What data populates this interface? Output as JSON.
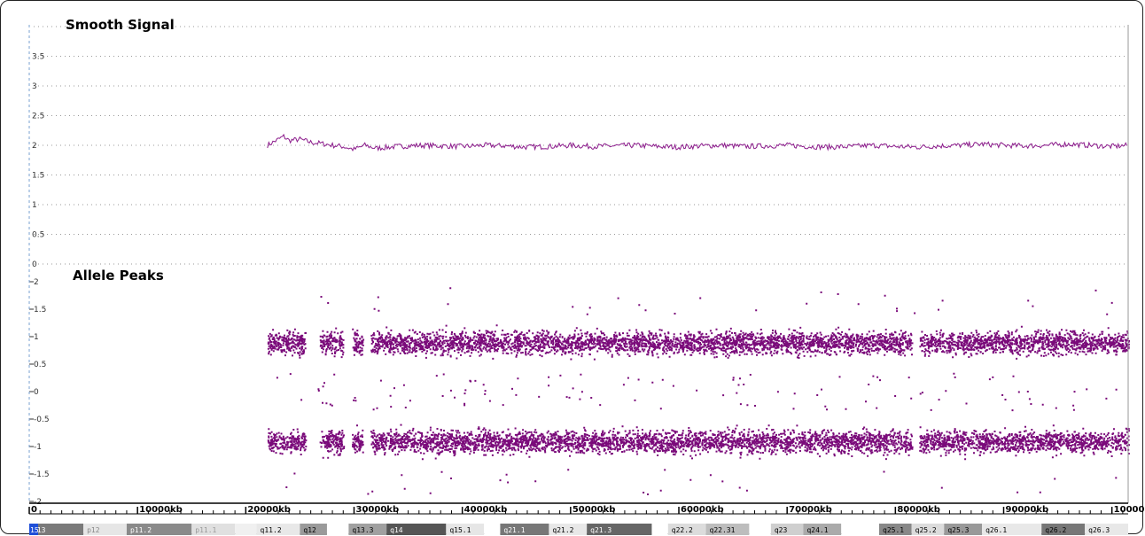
{
  "chart_data": [
    {
      "type": "line",
      "title": "Smooth Signal",
      "ylim": [
        0,
        4
      ],
      "y_ticks": [
        "0",
        "0.5",
        "1",
        "1.5",
        "2",
        "2.5",
        "3",
        "3.5"
      ],
      "grid": true,
      "color": "#8b1a8b",
      "series": [
        {
          "x_start_kb": 22000,
          "x_end_kb": 101500,
          "level": 2.0,
          "points": [
            [
              22000,
              2.0
            ],
            [
              22500,
              2.05
            ],
            [
              23000,
              2.1
            ],
            [
              23500,
              2.15
            ],
            [
              24000,
              2.08
            ],
            [
              25000,
              2.1
            ],
            [
              26000,
              2.05
            ],
            [
              27000,
              2.03
            ],
            [
              28000,
              2.0
            ],
            [
              29000,
              1.98
            ],
            [
              30000,
              1.93
            ],
            [
              31000,
              2.0
            ],
            [
              32000,
              1.95
            ],
            [
              34000,
              1.98
            ],
            [
              36000,
              2.0
            ],
            [
              38000,
              1.99
            ],
            [
              40000,
              1.98
            ],
            [
              42000,
              2.0
            ],
            [
              44000,
              1.99
            ],
            [
              46000,
              1.97
            ],
            [
              48000,
              1.98
            ],
            [
              50000,
              2.0
            ],
            [
              52000,
              1.98
            ],
            [
              54000,
              1.99
            ],
            [
              56000,
              2.0
            ],
            [
              58000,
              1.98
            ],
            [
              60000,
              1.97
            ],
            [
              62000,
              1.99
            ],
            [
              64000,
              2.0
            ],
            [
              66000,
              1.98
            ],
            [
              68000,
              1.99
            ],
            [
              70000,
              2.0
            ],
            [
              72000,
              1.98
            ],
            [
              74000,
              1.97
            ],
            [
              76000,
              1.98
            ],
            [
              78000,
              2.0
            ],
            [
              80000,
              1.98
            ],
            [
              82000,
              1.97
            ],
            [
              84000,
              1.99
            ],
            [
              86000,
              2.0
            ],
            [
              88000,
              2.02
            ],
            [
              90000,
              2.0
            ],
            [
              92000,
              1.99
            ],
            [
              94000,
              2.0
            ],
            [
              96000,
              2.02
            ],
            [
              98000,
              2.0
            ],
            [
              100000,
              1.98
            ],
            [
              101500,
              2.0
            ]
          ]
        }
      ]
    },
    {
      "type": "scatter",
      "title": "Allele Peaks",
      "ylim": [
        -2,
        2
      ],
      "y_ticks": [
        "-2",
        "-1.5",
        "-1",
        "-0.5",
        "0",
        "0.5",
        "1",
        "1.5",
        "2"
      ],
      "grid": false,
      "color": "#7a0a7a",
      "clusters": [
        {
          "y_center": 0.9,
          "spread": 0.2
        },
        {
          "y_center": -0.9,
          "spread": 0.2
        }
      ],
      "x_start_kb": 22000,
      "x_end_kb": 101500,
      "gaps_kb": [
        [
          25500,
          26800
        ],
        [
          29000,
          29800
        ],
        [
          30800,
          31500
        ],
        [
          81500,
          82200
        ]
      ]
    }
  ],
  "x_axis": {
    "range_kb": [
      0,
      101500
    ],
    "ticks": [
      {
        "value": 0,
        "label": "0"
      },
      {
        "value": 10000,
        "label": "10000kb"
      },
      {
        "value": 20000,
        "label": "20000kb"
      },
      {
        "value": 30000,
        "label": "30000kb"
      },
      {
        "value": 40000,
        "label": "40000kb"
      },
      {
        "value": 50000,
        "label": "50000kb"
      },
      {
        "value": 60000,
        "label": "60000kb"
      },
      {
        "value": 70000,
        "label": "70000kb"
      },
      {
        "value": 80000,
        "label": "80000kb"
      },
      {
        "value": 90000,
        "label": "90000kb"
      },
      {
        "value": 100000,
        "label": "100000"
      }
    ]
  },
  "ideogram": {
    "chromosome": "15",
    "bands": [
      {
        "label": "p13",
        "start": 0,
        "end": 5000,
        "color": "#7a7a7a",
        "text_color": "#ffffff"
      },
      {
        "label": "p12",
        "start": 5000,
        "end": 9000,
        "color": "#e6e6e6",
        "text_color": "#888888"
      },
      {
        "label": "p11.2",
        "start": 9000,
        "end": 15000,
        "color": "#8a8a8a",
        "text_color": "#ffffff"
      },
      {
        "label": "p11.1",
        "start": 15000,
        "end": 19000,
        "color": "#e0e0e0",
        "text_color": "#999999"
      },
      {
        "label": "",
        "start": 19000,
        "end": 21000,
        "color": "#f0f0f0",
        "text_color": "#000000"
      },
      {
        "label": "q11.2",
        "start": 21000,
        "end": 25000,
        "color": "#e8e8e8",
        "text_color": "#000000"
      },
      {
        "label": "q12",
        "start": 25000,
        "end": 27500,
        "color": "#9a9a9a",
        "text_color": "#000000"
      },
      {
        "label": "",
        "start": 27500,
        "end": 29500,
        "color": "#ffffff",
        "text_color": "#000000"
      },
      {
        "label": "q13.3",
        "start": 29500,
        "end": 33000,
        "color": "#a0a0a0",
        "text_color": "#000000"
      },
      {
        "label": "q14",
        "start": 33000,
        "end": 38500,
        "color": "#555555",
        "text_color": "#ffffff"
      },
      {
        "label": "q15.1",
        "start": 38500,
        "end": 42000,
        "color": "#e6e6e6",
        "text_color": "#000000"
      },
      {
        "label": "",
        "start": 42000,
        "end": 43500,
        "color": "#ffffff",
        "text_color": "#000000"
      },
      {
        "label": "q21.1",
        "start": 43500,
        "end": 48000,
        "color": "#777777",
        "text_color": "#ffffff"
      },
      {
        "label": "q21.2",
        "start": 48000,
        "end": 51500,
        "color": "#e8e8e8",
        "text_color": "#000000"
      },
      {
        "label": "q21.3",
        "start": 51500,
        "end": 57500,
        "color": "#666666",
        "text_color": "#ffffff"
      },
      {
        "label": "",
        "start": 57500,
        "end": 59000,
        "color": "#ffffff",
        "text_color": "#000000"
      },
      {
        "label": "q22.2",
        "start": 59000,
        "end": 62500,
        "color": "#dcdcdc",
        "text_color": "#000000"
      },
      {
        "label": "q22.31",
        "start": 62500,
        "end": 66500,
        "color": "#bdbdbd",
        "text_color": "#000000"
      },
      {
        "label": "",
        "start": 66500,
        "end": 68500,
        "color": "#ffffff",
        "text_color": "#000000"
      },
      {
        "label": "q23",
        "start": 68500,
        "end": 71500,
        "color": "#cfcfcf",
        "text_color": "#000000"
      },
      {
        "label": "q24.1",
        "start": 71500,
        "end": 75000,
        "color": "#aaaaaa",
        "text_color": "#000000"
      },
      {
        "label": "",
        "start": 75000,
        "end": 78500,
        "color": "#ffffff",
        "text_color": "#000000"
      },
      {
        "label": "q25.1",
        "start": 78500,
        "end": 81500,
        "color": "#888888",
        "text_color": "#000000"
      },
      {
        "label": "q25.2",
        "start": 81500,
        "end": 84500,
        "color": "#dcdcdc",
        "text_color": "#000000"
      },
      {
        "label": "q25.3",
        "start": 84500,
        "end": 88000,
        "color": "#999999",
        "text_color": "#000000"
      },
      {
        "label": "q26.1",
        "start": 88000,
        "end": 93500,
        "color": "#e8e8e8",
        "text_color": "#000000"
      },
      {
        "label": "q26.2",
        "start": 93500,
        "end": 97500,
        "color": "#777777",
        "text_color": "#000000"
      },
      {
        "label": "q26.3",
        "start": 97500,
        "end": 101500,
        "color": "#e8e8e8",
        "text_color": "#000000"
      }
    ]
  }
}
